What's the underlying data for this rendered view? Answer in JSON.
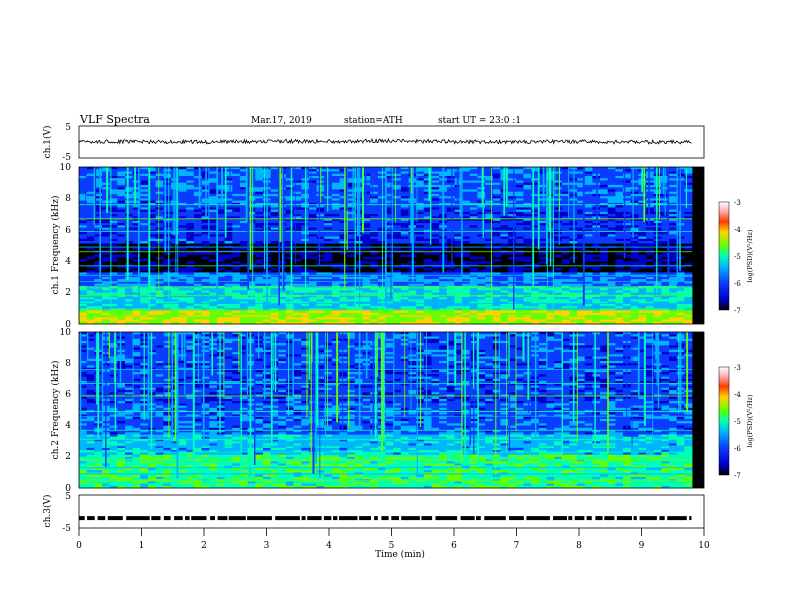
{
  "header": {
    "title": "VLF Spectra",
    "date": "Mar.17, 2019",
    "station": "station=ATH",
    "start": "start UT = 23:0 :1"
  },
  "chart_data": [
    {
      "type": "line",
      "panel": "ch1-waveform",
      "ylabel": "ch.1(V)",
      "ylim": [
        -5,
        5
      ],
      "yticks": [
        "5",
        "-5"
      ],
      "xlim": [
        0,
        10
      ],
      "x": [
        0,
        1,
        2,
        3,
        4,
        5,
        6,
        7,
        8,
        9,
        9.8
      ],
      "y": [
        0.2,
        0.1,
        0.0,
        0.3,
        0.2,
        0.4,
        0.1,
        0.0,
        0.1,
        0.0,
        0.0
      ]
    },
    {
      "type": "heatmap",
      "panel": "ch1-spectrogram",
      "ylabel": "ch.1 Frequency (kHz)",
      "ylim": [
        0,
        10
      ],
      "yticks": [
        "0",
        "2",
        "4",
        "6",
        "8",
        "10"
      ],
      "xlim": [
        0,
        10
      ],
      "colorbar": {
        "label": "log(PSD)(V²/Hz)",
        "range": [
          -7,
          -3
        ],
        "ticks": [
          "-3",
          "-4",
          "-5",
          "-6",
          "-7"
        ]
      }
    },
    {
      "type": "heatmap",
      "panel": "ch2-spectrogram",
      "ylabel": "ch.2 Frequency (kHz)",
      "ylim": [
        0,
        10
      ],
      "yticks": [
        "0",
        "2",
        "4",
        "6",
        "8",
        "10"
      ],
      "xlim": [
        0,
        10
      ],
      "colorbar": {
        "label": "log(PSD)(V²/Hz)",
        "range": [
          -7,
          -3
        ],
        "ticks": [
          "-3",
          "-4",
          "-5",
          "-6",
          "-7"
        ]
      }
    },
    {
      "type": "line",
      "panel": "ch3-waveform",
      "ylabel": "ch.3(V)",
      "ylim": [
        -5,
        5
      ],
      "yticks": [
        "5",
        "-5"
      ],
      "xlim": [
        0,
        10
      ],
      "x": [
        0,
        9.8
      ],
      "y": [
        -2,
        -2
      ]
    }
  ],
  "xaxis": {
    "label": "Time (min)",
    "ticks": [
      "0",
      "1",
      "2",
      "3",
      "4",
      "5",
      "6",
      "7",
      "8",
      "9",
      "10"
    ]
  },
  "colors": {
    "background": "#000000",
    "scale": [
      "#000000",
      "#0000c8",
      "#0a3cff",
      "#00b4ff",
      "#00ffb4",
      "#64ff00",
      "#ffd200",
      "#ff3c00",
      "#ffb4b4",
      "#ffffff"
    ]
  }
}
